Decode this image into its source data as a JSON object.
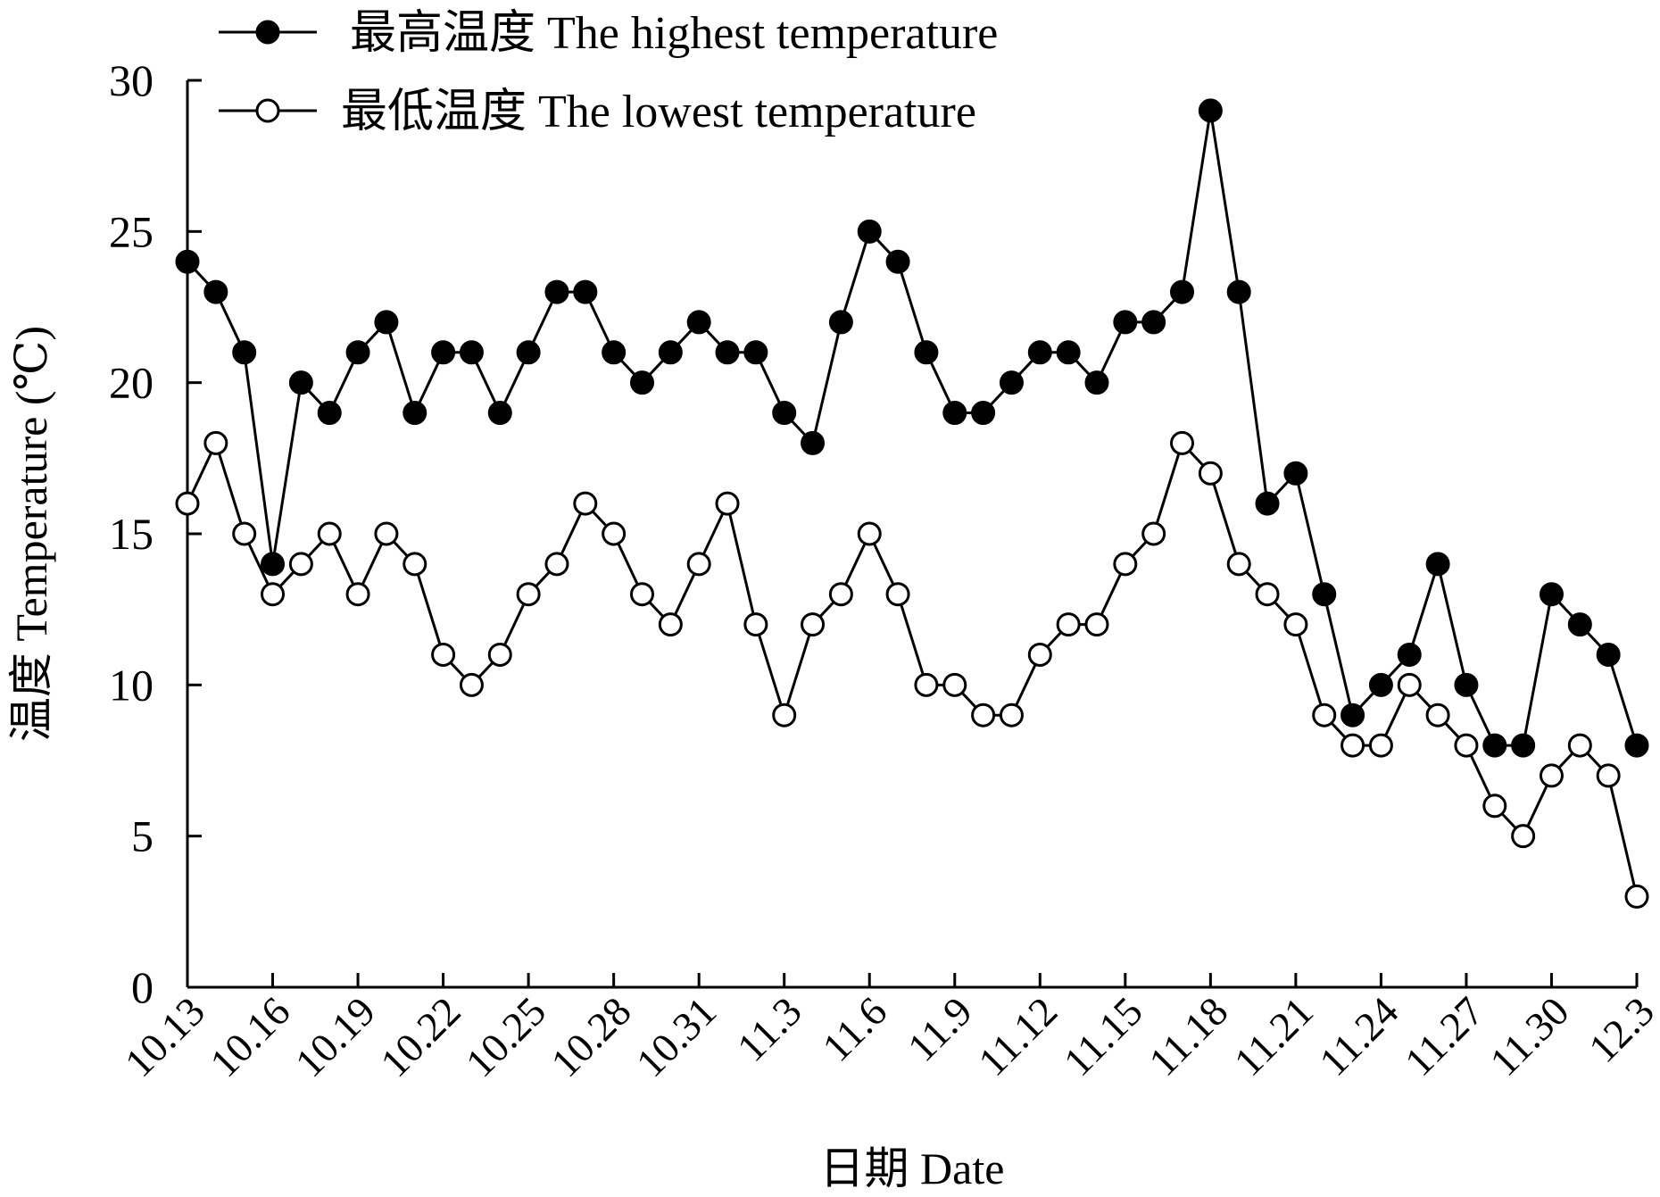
{
  "chart_data": {
    "type": "line",
    "xlabel": "日期 Date",
    "ylabel": "温度 Temperature (℃)",
    "ylim": [
      0,
      30
    ],
    "yticks": [
      0,
      5,
      10,
      15,
      20,
      25,
      30
    ],
    "grid": false,
    "legend_position": "top-left",
    "x": [
      "10.13",
      "10.14",
      "10.15",
      "10.16",
      "10.17",
      "10.18",
      "10.19",
      "10.20",
      "10.21",
      "10.22",
      "10.23",
      "10.24",
      "10.25",
      "10.26",
      "10.27",
      "10.28",
      "10.29",
      "10.30",
      "10.31",
      "11.1",
      "11.2",
      "11.3",
      "11.4",
      "11.5",
      "11.6",
      "11.7",
      "11.8",
      "11.9",
      "11.10",
      "11.11",
      "11.12",
      "11.13",
      "11.14",
      "11.15",
      "11.16",
      "11.17",
      "11.18",
      "11.19",
      "11.20",
      "11.21",
      "11.22",
      "11.23",
      "11.24",
      "11.25",
      "11.26",
      "11.27",
      "11.28",
      "11.29",
      "11.30",
      "12.1",
      "12.2",
      "12.3"
    ],
    "xtick_labels": [
      "10.13",
      "10.16",
      "10.19",
      "10.22",
      "10.25",
      "10.28",
      "10.31",
      "11.3",
      "11.6",
      "11.9",
      "11.12",
      "11.15",
      "11.18",
      "11.21",
      "11.24",
      "11.27",
      "11.30",
      "12.3"
    ],
    "series": [
      {
        "name": "最高温度 The highest temperature",
        "marker": "filled-circle",
        "color": "#000000",
        "values": [
          24,
          23,
          21,
          14,
          20,
          19,
          21,
          22,
          19,
          21,
          21,
          19,
          21,
          23,
          23,
          21,
          20,
          21,
          22,
          21,
          21,
          19,
          18,
          22,
          25,
          24,
          21,
          19,
          19,
          20,
          21,
          21,
          20,
          22,
          22,
          23,
          29,
          23,
          16,
          17,
          13,
          9,
          10,
          11,
          14,
          10,
          8,
          8,
          13,
          12,
          11,
          8
        ]
      },
      {
        "name": "最低温度 The lowest temperature",
        "marker": "open-circle",
        "color": "#000000",
        "values": [
          16,
          18,
          15,
          13,
          14,
          15,
          13,
          15,
          14,
          11,
          10,
          11,
          13,
          14,
          16,
          15,
          13,
          12,
          14,
          16,
          12,
          9,
          12,
          13,
          15,
          13,
          10,
          10,
          9,
          9,
          11,
          12,
          12,
          14,
          15,
          18,
          17,
          14,
          13,
          12,
          9,
          8,
          8,
          10,
          9,
          8,
          6,
          5,
          7,
          8,
          7,
          3
        ]
      }
    ]
  }
}
